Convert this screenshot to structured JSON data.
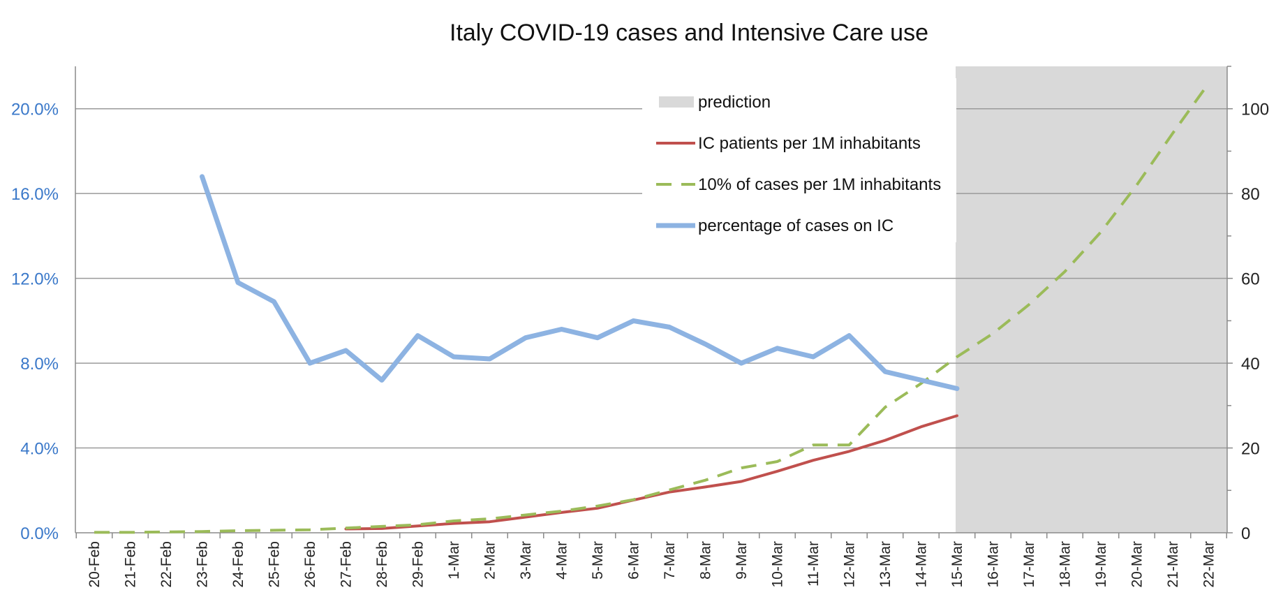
{
  "chart_data": {
    "type": "line",
    "title": "Italy COVID-19 cases and Intensive Care use",
    "categories": [
      "20-Feb",
      "21-Feb",
      "22-Feb",
      "23-Feb",
      "24-Feb",
      "25-Feb",
      "26-Feb",
      "27-Feb",
      "28-Feb",
      "29-Feb",
      "1-Mar",
      "2-Mar",
      "3-Mar",
      "4-Mar",
      "5-Mar",
      "6-Mar",
      "7-Mar",
      "8-Mar",
      "9-Mar",
      "10-Mar",
      "11-Mar",
      "12-Mar",
      "13-Mar",
      "14-Mar",
      "15-Mar",
      "16-Mar",
      "17-Mar",
      "18-Mar",
      "19-Mar",
      "20-Mar",
      "21-Mar",
      "22-Mar"
    ],
    "left_axis": {
      "ticks": [
        "0.0%",
        "4.0%",
        "8.0%",
        "12.0%",
        "16.0%",
        "20.0%"
      ],
      "ylim": [
        0,
        0.22
      ],
      "color": "#3a78c9"
    },
    "right_axis": {
      "ticks": [
        "0",
        "20",
        "40",
        "60",
        "80",
        "100"
      ],
      "ylim": [
        0,
        110
      ]
    },
    "prediction": {
      "label": "prediction",
      "start": "15-Mar",
      "end": "22-Mar",
      "color": "#d9d9d9"
    },
    "series": [
      {
        "name": "IC patients per 1M inhabitants",
        "axis": "right",
        "color": "#c0504d",
        "style": "solid",
        "values": [
          null,
          null,
          null,
          null,
          null,
          null,
          null,
          0.9,
          1.0,
          1.6,
          2.2,
          2.6,
          3.7,
          4.8,
          5.8,
          7.7,
          9.6,
          10.8,
          12.1,
          14.5,
          17.1,
          19.2,
          21.8,
          25.0,
          27.6,
          null,
          null,
          null,
          null,
          null,
          null,
          null
        ]
      },
      {
        "name": "10% of cases per 1M inhabitants",
        "axis": "right",
        "color": "#9bbb59",
        "style": "dashed",
        "values": [
          0.1,
          0.1,
          0.2,
          0.3,
          0.5,
          0.6,
          0.7,
          1.1,
          1.5,
          1.9,
          2.8,
          3.3,
          4.2,
          5.1,
          6.3,
          7.8,
          10.1,
          12.4,
          15.3,
          16.8,
          20.7,
          20.7,
          29.6,
          35.2,
          41.5,
          47.0,
          53.8,
          61.6,
          70.9,
          82.0,
          94.2,
          106.0
        ]
      },
      {
        "name": "percentage of cases on IC",
        "axis": "left",
        "color": "#8db3e2",
        "style": "thick",
        "values": [
          null,
          null,
          null,
          0.168,
          0.118,
          0.109,
          0.08,
          0.086,
          0.072,
          0.093,
          0.083,
          0.082,
          0.092,
          0.096,
          0.092,
          0.1,
          0.097,
          0.089,
          0.08,
          0.087,
          0.083,
          0.093,
          0.076,
          0.072,
          0.068,
          null,
          null,
          null,
          null,
          null,
          null,
          null
        ]
      }
    ],
    "legend": [
      "prediction",
      "IC patients per 1M inhabitants",
      "10% of cases per 1M inhabitants",
      "percentage of cases on IC"
    ],
    "legend_position": "top-right",
    "grid": true
  }
}
